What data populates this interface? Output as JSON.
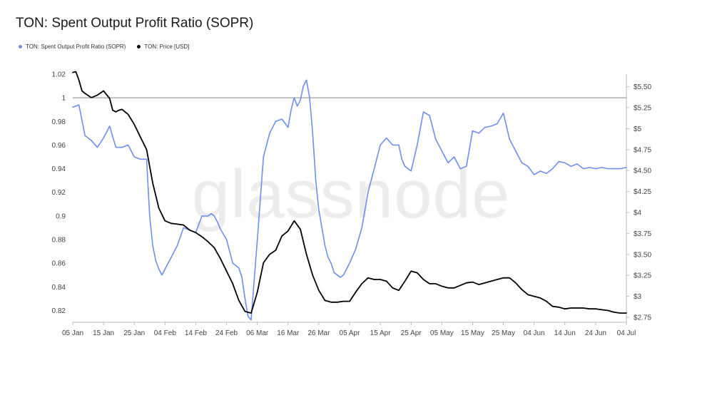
{
  "title": "TON: Spent Output Profit Ratio (SOPR)",
  "watermark": "glassnode",
  "legend": [
    {
      "label": "TON: Spent Output Profit Ratio (SOPR)",
      "color": "#6c8ff0"
    },
    {
      "label": "TON: Price [USD]",
      "color": "#000000"
    }
  ],
  "chart_data": {
    "type": "line",
    "x_ticks": [
      "05 Jan",
      "15 Jan",
      "25 Jan",
      "04 Feb",
      "14 Feb",
      "24 Feb",
      "06 Mar",
      "16 Mar",
      "26 Mar",
      "05 Apr",
      "15 Apr",
      "25 Apr",
      "05 May",
      "15 May",
      "25 May",
      "04 Jun",
      "14 Jun",
      "24 Jun",
      "04 Jul"
    ],
    "y_left": {
      "ticks": [
        "0.82",
        "0.84",
        "0.86",
        "0.88",
        "0.9",
        "0.92",
        "0.94",
        "0.96",
        "0.98",
        "1",
        "1.02"
      ],
      "range": [
        0.81,
        1.02
      ]
    },
    "y_right": {
      "ticks": [
        "$2.75",
        "$3",
        "$3.25",
        "$3.50",
        "$3.75",
        "$4",
        "$4.25",
        "$4.50",
        "$4.75",
        "$5",
        "$5.25",
        "$5.50"
      ],
      "range": [
        2.69,
        5.65
      ]
    },
    "reference_line": 1,
    "series": [
      {
        "name": "TON: Spent Output Profit Ratio (SOPR)",
        "axis": "left",
        "color": "#6c8ff0",
        "x": [
          0,
          2,
          4,
          6,
          8,
          10,
          12,
          14,
          16,
          18,
          20,
          22,
          24,
          25,
          26,
          27,
          28,
          29,
          30,
          31,
          32,
          34,
          36,
          38,
          40,
          42,
          44,
          45,
          46,
          47,
          48,
          50,
          52,
          54,
          55,
          56,
          57,
          58,
          60,
          62,
          64,
          66,
          68,
          70,
          71,
          72,
          73,
          74,
          75,
          76,
          77,
          78,
          79,
          80,
          81,
          82,
          83,
          84,
          85,
          86,
          87,
          88,
          89,
          90,
          92,
          94,
          95,
          96,
          98,
          100,
          102,
          104,
          106,
          107,
          108,
          110,
          112,
          114,
          116,
          117,
          118,
          120,
          122,
          124,
          126,
          128,
          130,
          132,
          134,
          136,
          138,
          140,
          142,
          144,
          146,
          148,
          150,
          152,
          154,
          156,
          158,
          160,
          162,
          164,
          166,
          168,
          170,
          172,
          174,
          176,
          178,
          180
        ],
        "y": [
          0.992,
          0.994,
          0.968,
          0.964,
          0.958,
          0.966,
          0.976,
          0.958,
          0.958,
          0.96,
          0.95,
          0.948,
          0.948,
          0.9,
          0.875,
          0.862,
          0.855,
          0.85,
          0.855,
          0.86,
          0.865,
          0.875,
          0.89,
          0.888,
          0.886,
          0.9,
          0.9,
          0.902,
          0.9,
          0.895,
          0.889,
          0.88,
          0.86,
          0.856,
          0.848,
          0.83,
          0.815,
          0.812,
          0.88,
          0.95,
          0.97,
          0.98,
          0.982,
          0.975,
          0.99,
          1.0,
          0.993,
          0.998,
          1.01,
          1.015,
          1.0,
          0.97,
          0.93,
          0.905,
          0.89,
          0.875,
          0.865,
          0.86,
          0.852,
          0.85,
          0.848,
          0.85,
          0.855,
          0.86,
          0.872,
          0.89,
          0.905,
          0.92,
          0.94,
          0.96,
          0.966,
          0.96,
          0.96,
          0.948,
          0.942,
          0.938,
          0.96,
          0.988,
          0.985,
          0.975,
          0.965,
          0.955,
          0.945,
          0.95,
          0.94,
          0.942,
          0.972,
          0.97,
          0.975,
          0.976,
          0.978,
          0.987,
          0.965,
          0.955,
          0.945,
          0.942,
          0.935,
          0.938,
          0.936,
          0.94,
          0.946,
          0.945,
          0.942,
          0.944,
          0.94,
          0.941,
          0.94,
          0.941,
          0.94,
          0.94,
          0.94,
          0.941
        ]
      },
      {
        "name": "TON: Price [USD]",
        "axis": "right",
        "color": "#000000",
        "x": [
          0,
          1,
          2,
          3,
          4,
          6,
          8,
          10,
          12,
          13,
          14,
          15,
          16,
          18,
          20,
          22,
          24,
          25,
          26,
          28,
          30,
          32,
          34,
          36,
          38,
          40,
          42,
          44,
          46,
          48,
          50,
          52,
          54,
          56,
          58,
          60,
          62,
          64,
          66,
          68,
          70,
          72,
          74,
          76,
          78,
          80,
          82,
          84,
          86,
          88,
          90,
          92,
          94,
          96,
          98,
          100,
          102,
          104,
          106,
          108,
          110,
          112,
          114,
          116,
          118,
          120,
          122,
          124,
          126,
          128,
          130,
          132,
          134,
          136,
          138,
          140,
          142,
          144,
          146,
          148,
          150,
          152,
          154,
          156,
          158,
          160,
          162,
          164,
          166,
          168,
          170,
          172,
          174,
          176,
          178,
          180
        ],
        "y": [
          5.67,
          5.68,
          5.58,
          5.45,
          5.42,
          5.37,
          5.4,
          5.45,
          5.36,
          5.22,
          5.2,
          5.22,
          5.23,
          5.17,
          5.05,
          4.9,
          4.75,
          4.55,
          4.35,
          4.05,
          3.9,
          3.87,
          3.86,
          3.85,
          3.79,
          3.76,
          3.71,
          3.65,
          3.58,
          3.45,
          3.3,
          3.15,
          2.95,
          2.82,
          2.8,
          3.05,
          3.4,
          3.5,
          3.55,
          3.72,
          3.78,
          3.9,
          3.8,
          3.5,
          3.25,
          3.07,
          2.95,
          2.93,
          2.93,
          2.94,
          2.94,
          3.05,
          3.15,
          3.22,
          3.2,
          3.2,
          3.18,
          3.1,
          3.07,
          3.18,
          3.3,
          3.28,
          3.2,
          3.15,
          3.15,
          3.12,
          3.1,
          3.1,
          3.13,
          3.16,
          3.17,
          3.14,
          3.16,
          3.18,
          3.2,
          3.22,
          3.22,
          3.16,
          3.08,
          3.02,
          3.0,
          2.98,
          2.94,
          2.88,
          2.87,
          2.85,
          2.86,
          2.86,
          2.86,
          2.85,
          2.85,
          2.84,
          2.83,
          2.81,
          2.8,
          2.8
        ]
      }
    ]
  }
}
